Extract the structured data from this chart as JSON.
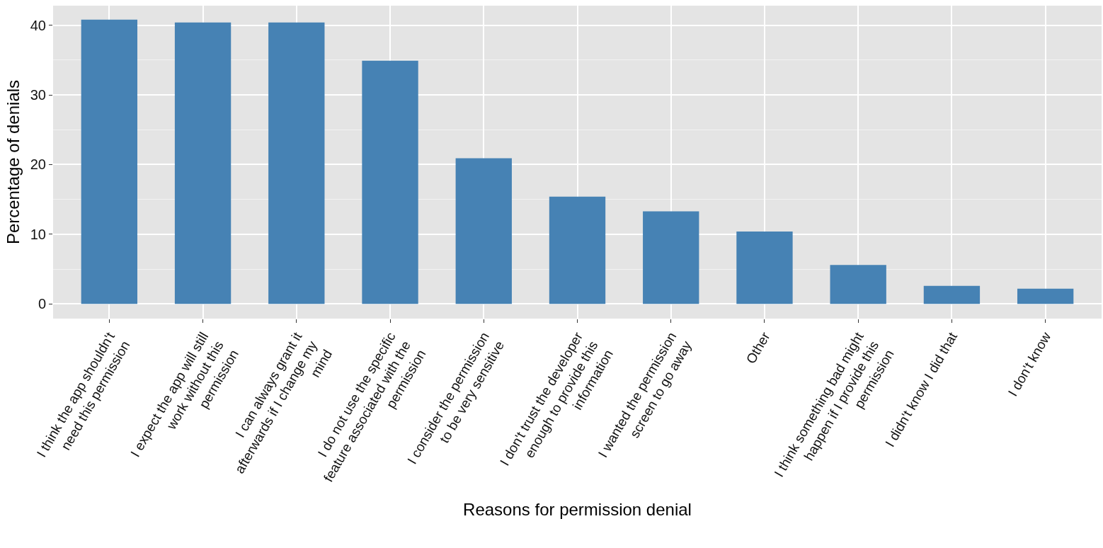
{
  "chart_data": {
    "type": "bar",
    "xlabel": "Reasons for permission denial",
    "ylabel": "Percentage of denials",
    "categories": [
      "I think the app shouldn't need this permission",
      "I expect the app will still work without this permission",
      "I can always grant it afterwards if I change my mind",
      "I do not use the specific feature associated with the permission",
      "I consider the permission to be very sensitive",
      "I don't trust the developer enough to provide this information",
      "I wanted the permission screen to go away",
      "Other",
      "I think something bad might happen if I provide this permission",
      "I didn't know I did that",
      "I don't know"
    ],
    "values": [
      40.8,
      40.4,
      40.4,
      34.9,
      20.9,
      15.4,
      13.3,
      10.4,
      5.6,
      2.6,
      2.2
    ],
    "color": "#4682b4",
    "ylim": [
      -2.1,
      42.8
    ],
    "yticks": [
      0,
      10,
      20,
      30,
      40
    ],
    "grid": true
  }
}
